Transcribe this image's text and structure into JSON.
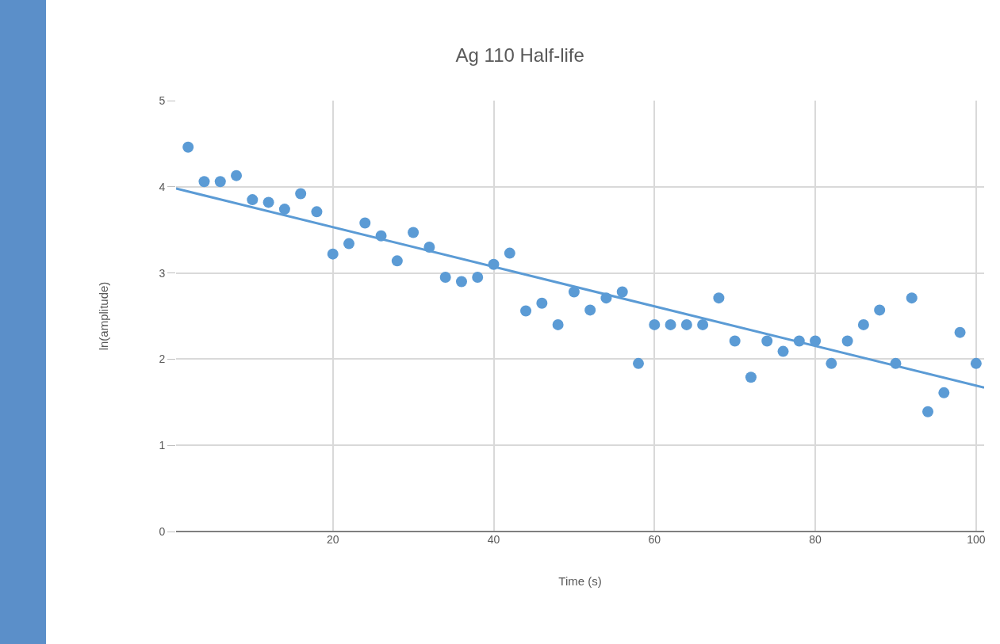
{
  "chart_data": {
    "type": "scatter",
    "title": "Ag 110 Half-life",
    "xlabel": "Time (s)",
    "ylabel": "ln(amplitude)",
    "xlim": [
      0.5,
      101
    ],
    "xticks": [
      20,
      40,
      60,
      80,
      100
    ],
    "ylim": [
      0,
      5
    ],
    "yticks": [
      0,
      1,
      2,
      3,
      4,
      5
    ],
    "grid": true,
    "series": [
      {
        "marker": "circle",
        "color": "#5b9bd5",
        "x": [
          2,
          4,
          6,
          8,
          10,
          12,
          14,
          16,
          18,
          20,
          22,
          24,
          26,
          28,
          30,
          32,
          34,
          36,
          38,
          40,
          42,
          44,
          46,
          48,
          50,
          52,
          54,
          56,
          58,
          60,
          62,
          64,
          66,
          68,
          70,
          72,
          74,
          76,
          78,
          80,
          82,
          84,
          86,
          88,
          90,
          92,
          94,
          96,
          98,
          100
        ],
        "values": [
          4.46,
          4.06,
          4.06,
          4.13,
          3.85,
          3.82,
          3.74,
          3.92,
          3.71,
          3.22,
          3.34,
          3.58,
          3.43,
          3.14,
          3.47,
          3.3,
          2.95,
          2.9,
          2.95,
          3.1,
          3.23,
          2.56,
          2.65,
          2.4,
          2.78,
          2.57,
          2.71,
          2.78,
          1.95,
          2.4,
          2.4,
          2.4,
          2.4,
          2.71,
          2.21,
          1.79,
          2.21,
          2.09,
          2.21,
          2.21,
          1.95,
          2.21,
          2.4,
          2.57,
          1.95,
          2.71,
          1.39,
          1.61,
          2.31,
          1.95
        ]
      },
      {
        "type": "line",
        "marker": "none",
        "color": "#5b9bd5",
        "x": [
          0.5,
          101
        ],
        "values": [
          3.98,
          1.67
        ]
      }
    ]
  }
}
